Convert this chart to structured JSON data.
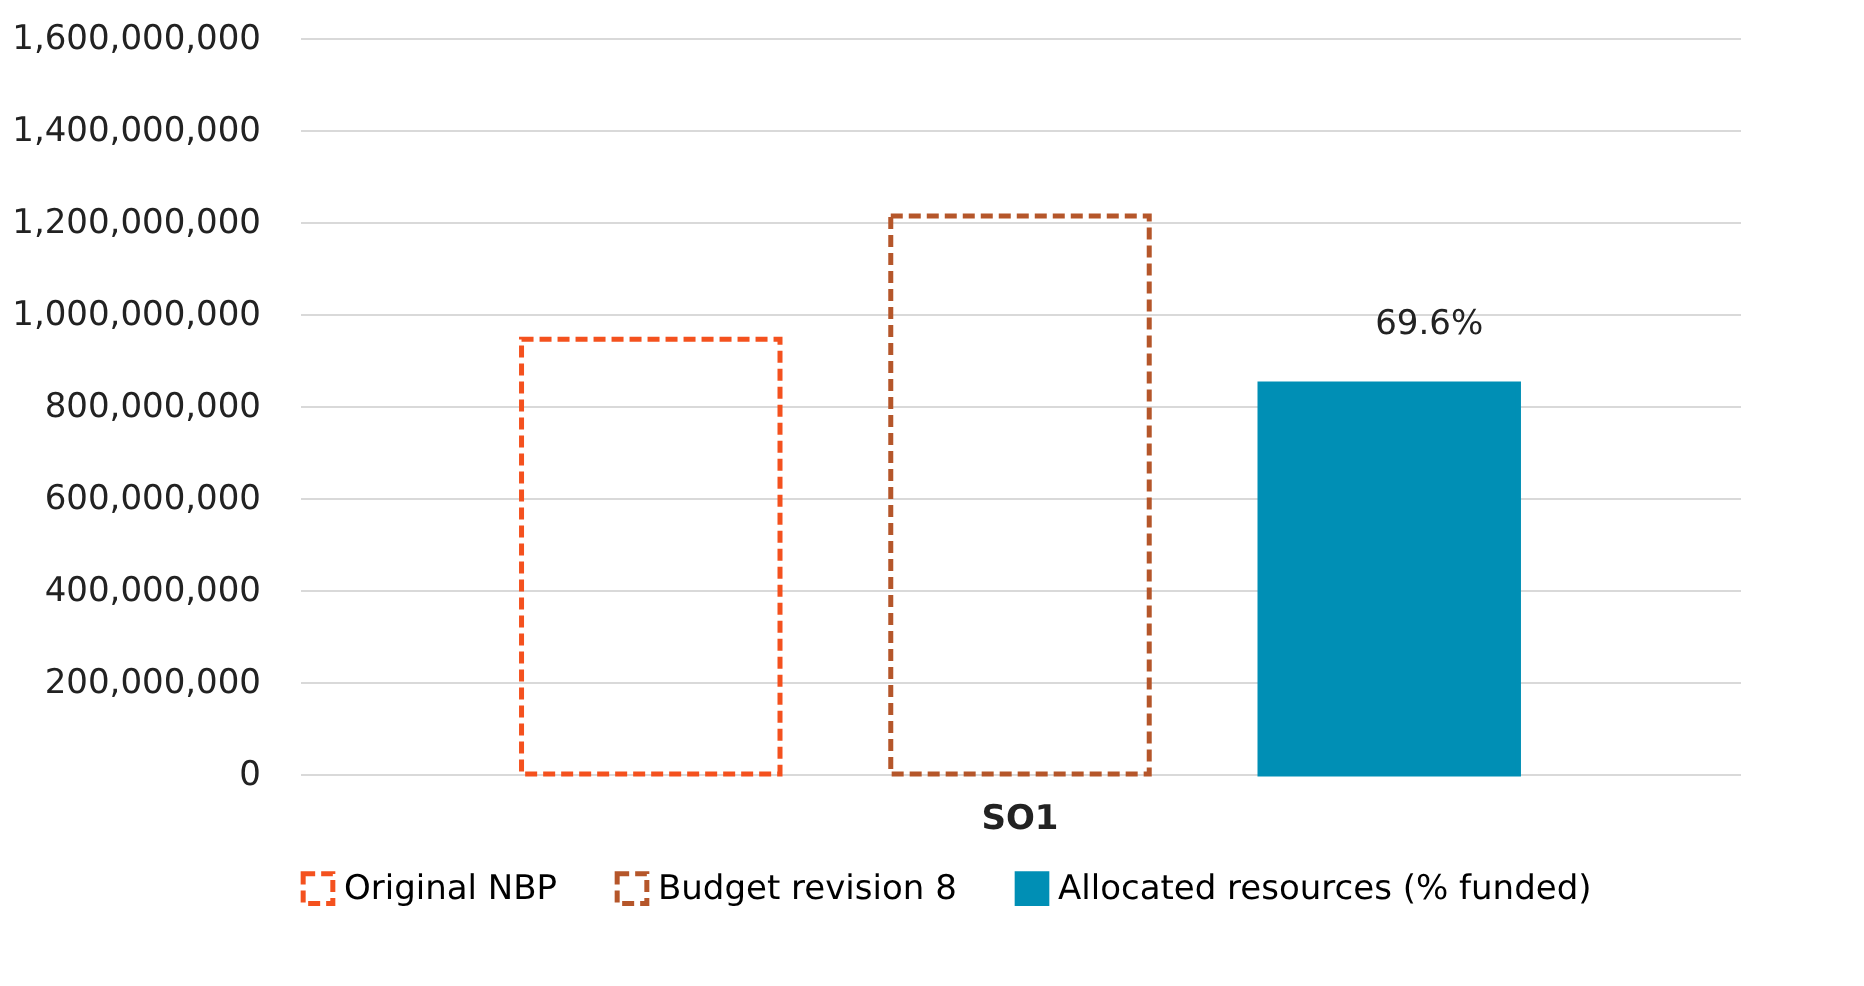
{
  "chart_data": {
    "type": "bar",
    "categories": [
      "SO1"
    ],
    "series": [
      {
        "name": "Original NBP",
        "color": "#f4511e",
        "values": [
          945000000
        ],
        "line_style": "dashed"
      },
      {
        "name": "Budget revision 8",
        "color": "#b5562a",
        "values": [
          1213000000
        ],
        "line_style": "dashed"
      },
      {
        "name": "Allocated resources (% funded)",
        "color": "#008fb5",
        "values": [
          848000000
        ],
        "line_style": "solid"
      }
    ],
    "ylim": [
      0,
      1600000000
    ],
    "yticks": [
      0,
      {
        "value": 200000000,
        "label": "200,000,000"
      },
      {
        "value": 400000000,
        "label": "400,000,000"
      },
      {
        "value": 600000000,
        "label": "600,000,000"
      },
      {
        "value": 800000000,
        "label": "800,000,000"
      },
      {
        "value": 1000000000,
        "label": "1,000,000,000"
      },
      {
        "value": 1200000000,
        "label": "1,200,000,000"
      },
      {
        "value": 1400000000,
        "label": "1,400,000,000"
      },
      {
        "value": 1600000000,
        "label": "1,600,000,000"
      }
    ],
    "grid": "y",
    "legend": "bottom",
    "annotations": [
      "69.6%"
    ]
  }
}
